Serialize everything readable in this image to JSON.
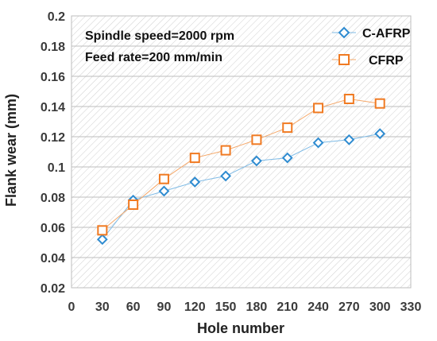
{
  "chart_data": {
    "type": "line",
    "xlabel": "Hole number",
    "ylabel": "Flank wear (mm)",
    "xlim": [
      0,
      330
    ],
    "ylim": [
      0.02,
      0.2
    ],
    "xticks": [
      "0",
      "30",
      "60",
      "90",
      "120",
      "150",
      "180",
      "210",
      "240",
      "270",
      "300",
      "330"
    ],
    "yticks": [
      "0.02",
      "0.04",
      "0.06",
      "0.08",
      "0.1",
      "0.12",
      "0.14",
      "0.16",
      "0.18",
      "0.2"
    ],
    "annotations": [
      "Spindle speed=2000 rpm",
      "Feed rate=200 mm/min"
    ],
    "legend_position": "top-right",
    "background": "hatched",
    "x": [
      30,
      60,
      90,
      120,
      150,
      180,
      210,
      240,
      270,
      300
    ],
    "series": [
      {
        "name": "C-AFRP",
        "marker": "diamond",
        "color": "#2e8bd0",
        "values": [
          0.052,
          0.078,
          0.084,
          0.09,
          0.094,
          0.104,
          0.106,
          0.116,
          0.118,
          0.122
        ]
      },
      {
        "name": "CFRP",
        "marker": "square",
        "color": "#f07a22",
        "values": [
          0.058,
          0.075,
          0.092,
          0.106,
          0.111,
          0.118,
          0.126,
          0.139,
          0.145,
          0.142
        ]
      }
    ]
  }
}
